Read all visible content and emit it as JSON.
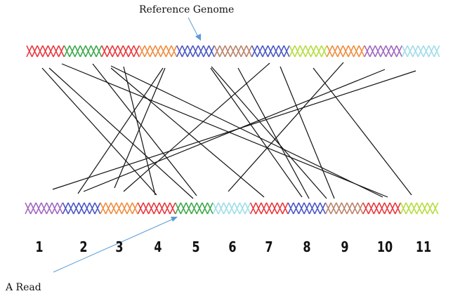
{
  "labels": {
    "reference": "Reference Genome",
    "read": "A Read"
  },
  "top_segment_colors": [
    "#e8343a",
    "#3aa648",
    "#e8343a",
    "#f08a3c",
    "#4654c4",
    "#b88068",
    "#4654c4",
    "#b4dc3c",
    "#f08a3c",
    "#a064c0",
    "#9edce8"
  ],
  "bottom_segment_colors": [
    "#a064c0",
    "#4654c4",
    "#f08a3c",
    "#e8343a",
    "#3aa648",
    "#9edce8",
    "#e8343a",
    "#4654c4",
    "#b88068",
    "#e8343a",
    "#b4dc3c"
  ],
  "segment_numbers": [
    "1",
    "2",
    "3",
    "4",
    "5",
    "6",
    "7",
    "8",
    "9",
    "10",
    "11"
  ],
  "pointer_color": "#5b9bd5"
}
